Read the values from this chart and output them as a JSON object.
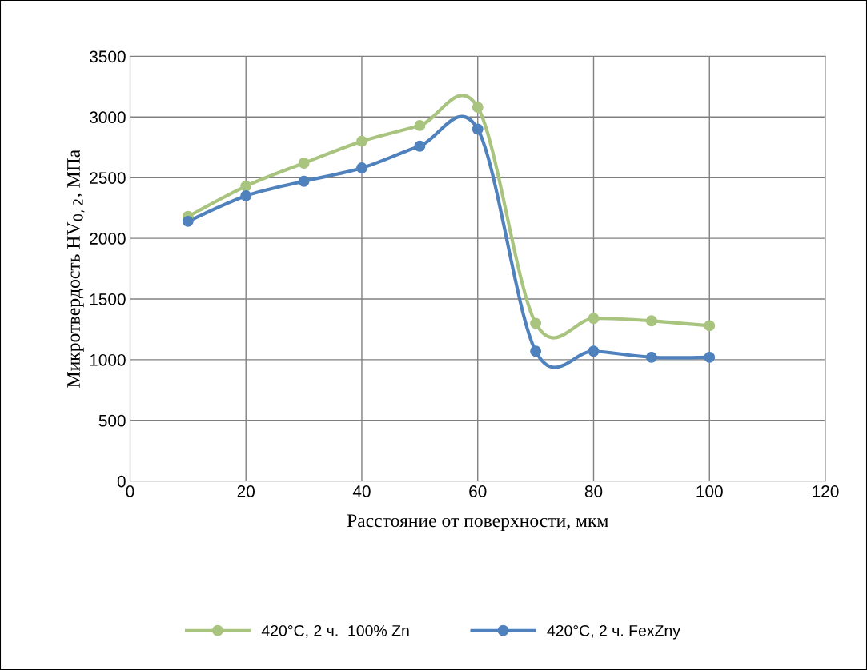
{
  "chart_data": {
    "type": "line",
    "xlabel": "Расстояние от поверхности, мкм",
    "ylabel": "Микротвердость HV$_{0,2}$, МПа",
    "x": [
      10,
      20,
      30,
      40,
      50,
      60,
      70,
      80,
      90,
      100
    ],
    "series": [
      {
        "name": "420°C, 2 ч.  100% Zn",
        "color": "#a9c47f",
        "values": [
          2180,
          2430,
          2620,
          2800,
          2930,
          3080,
          1300,
          1340,
          1320,
          1280
        ]
      },
      {
        "name": "420°C, 2 ч. FexZny",
        "color": "#4f81bd",
        "values": [
          2140,
          2350,
          2470,
          2580,
          2760,
          2900,
          1070,
          1070,
          1020,
          1020
        ]
      }
    ],
    "xlim": [
      0,
      120
    ],
    "xticks": [
      0,
      20,
      40,
      60,
      80,
      100,
      120
    ],
    "ylim": [
      0,
      3500
    ],
    "yticks": [
      0,
      500,
      1000,
      1500,
      2000,
      2500,
      3000,
      3500
    ],
    "grid": true,
    "legend": "bottom",
    "marker": "circle",
    "line_style": "solid"
  }
}
